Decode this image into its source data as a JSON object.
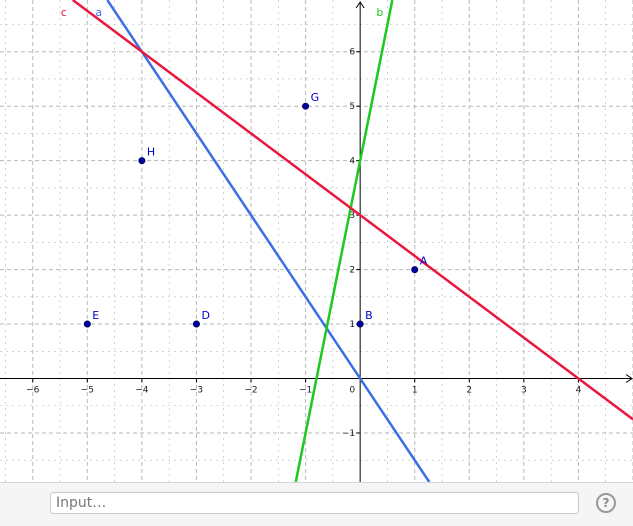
{
  "graphics": {
    "x_range": [
      -6.6,
      5.0
    ],
    "y_range": [
      -1.9,
      6.95
    ],
    "x_ticks": [
      -6,
      -5,
      -4,
      -3,
      -2,
      -1,
      1,
      2,
      3,
      4
    ],
    "y_ticks": [
      -1,
      1,
      2,
      3,
      4,
      5,
      6
    ],
    "origin_label": "0",
    "grid": true,
    "colors": {
      "axis": "#000000",
      "grid": "#b8b8b8",
      "point": "#0000a0",
      "point_label": "#0000cc"
    },
    "points": [
      {
        "name": "A",
        "x": 1,
        "y": 2
      },
      {
        "name": "B",
        "x": 0,
        "y": 1
      },
      {
        "name": "D",
        "x": -3,
        "y": 1
      },
      {
        "name": "E",
        "x": -5,
        "y": 1
      },
      {
        "name": "G",
        "x": -1,
        "y": 5
      },
      {
        "name": "H",
        "x": -4,
        "y": 4
      }
    ],
    "lines": [
      {
        "name": "a",
        "slope": -1.5,
        "intercept": 0,
        "color": "#3a6fe8"
      },
      {
        "name": "b",
        "slope": 5,
        "intercept": 4,
        "color": "#1ec81e"
      },
      {
        "name": "c",
        "slope": -0.75,
        "intercept": 3,
        "color": "#e8193c"
      }
    ]
  },
  "input_bar": {
    "placeholder": "Input…",
    "help_label": "?"
  }
}
